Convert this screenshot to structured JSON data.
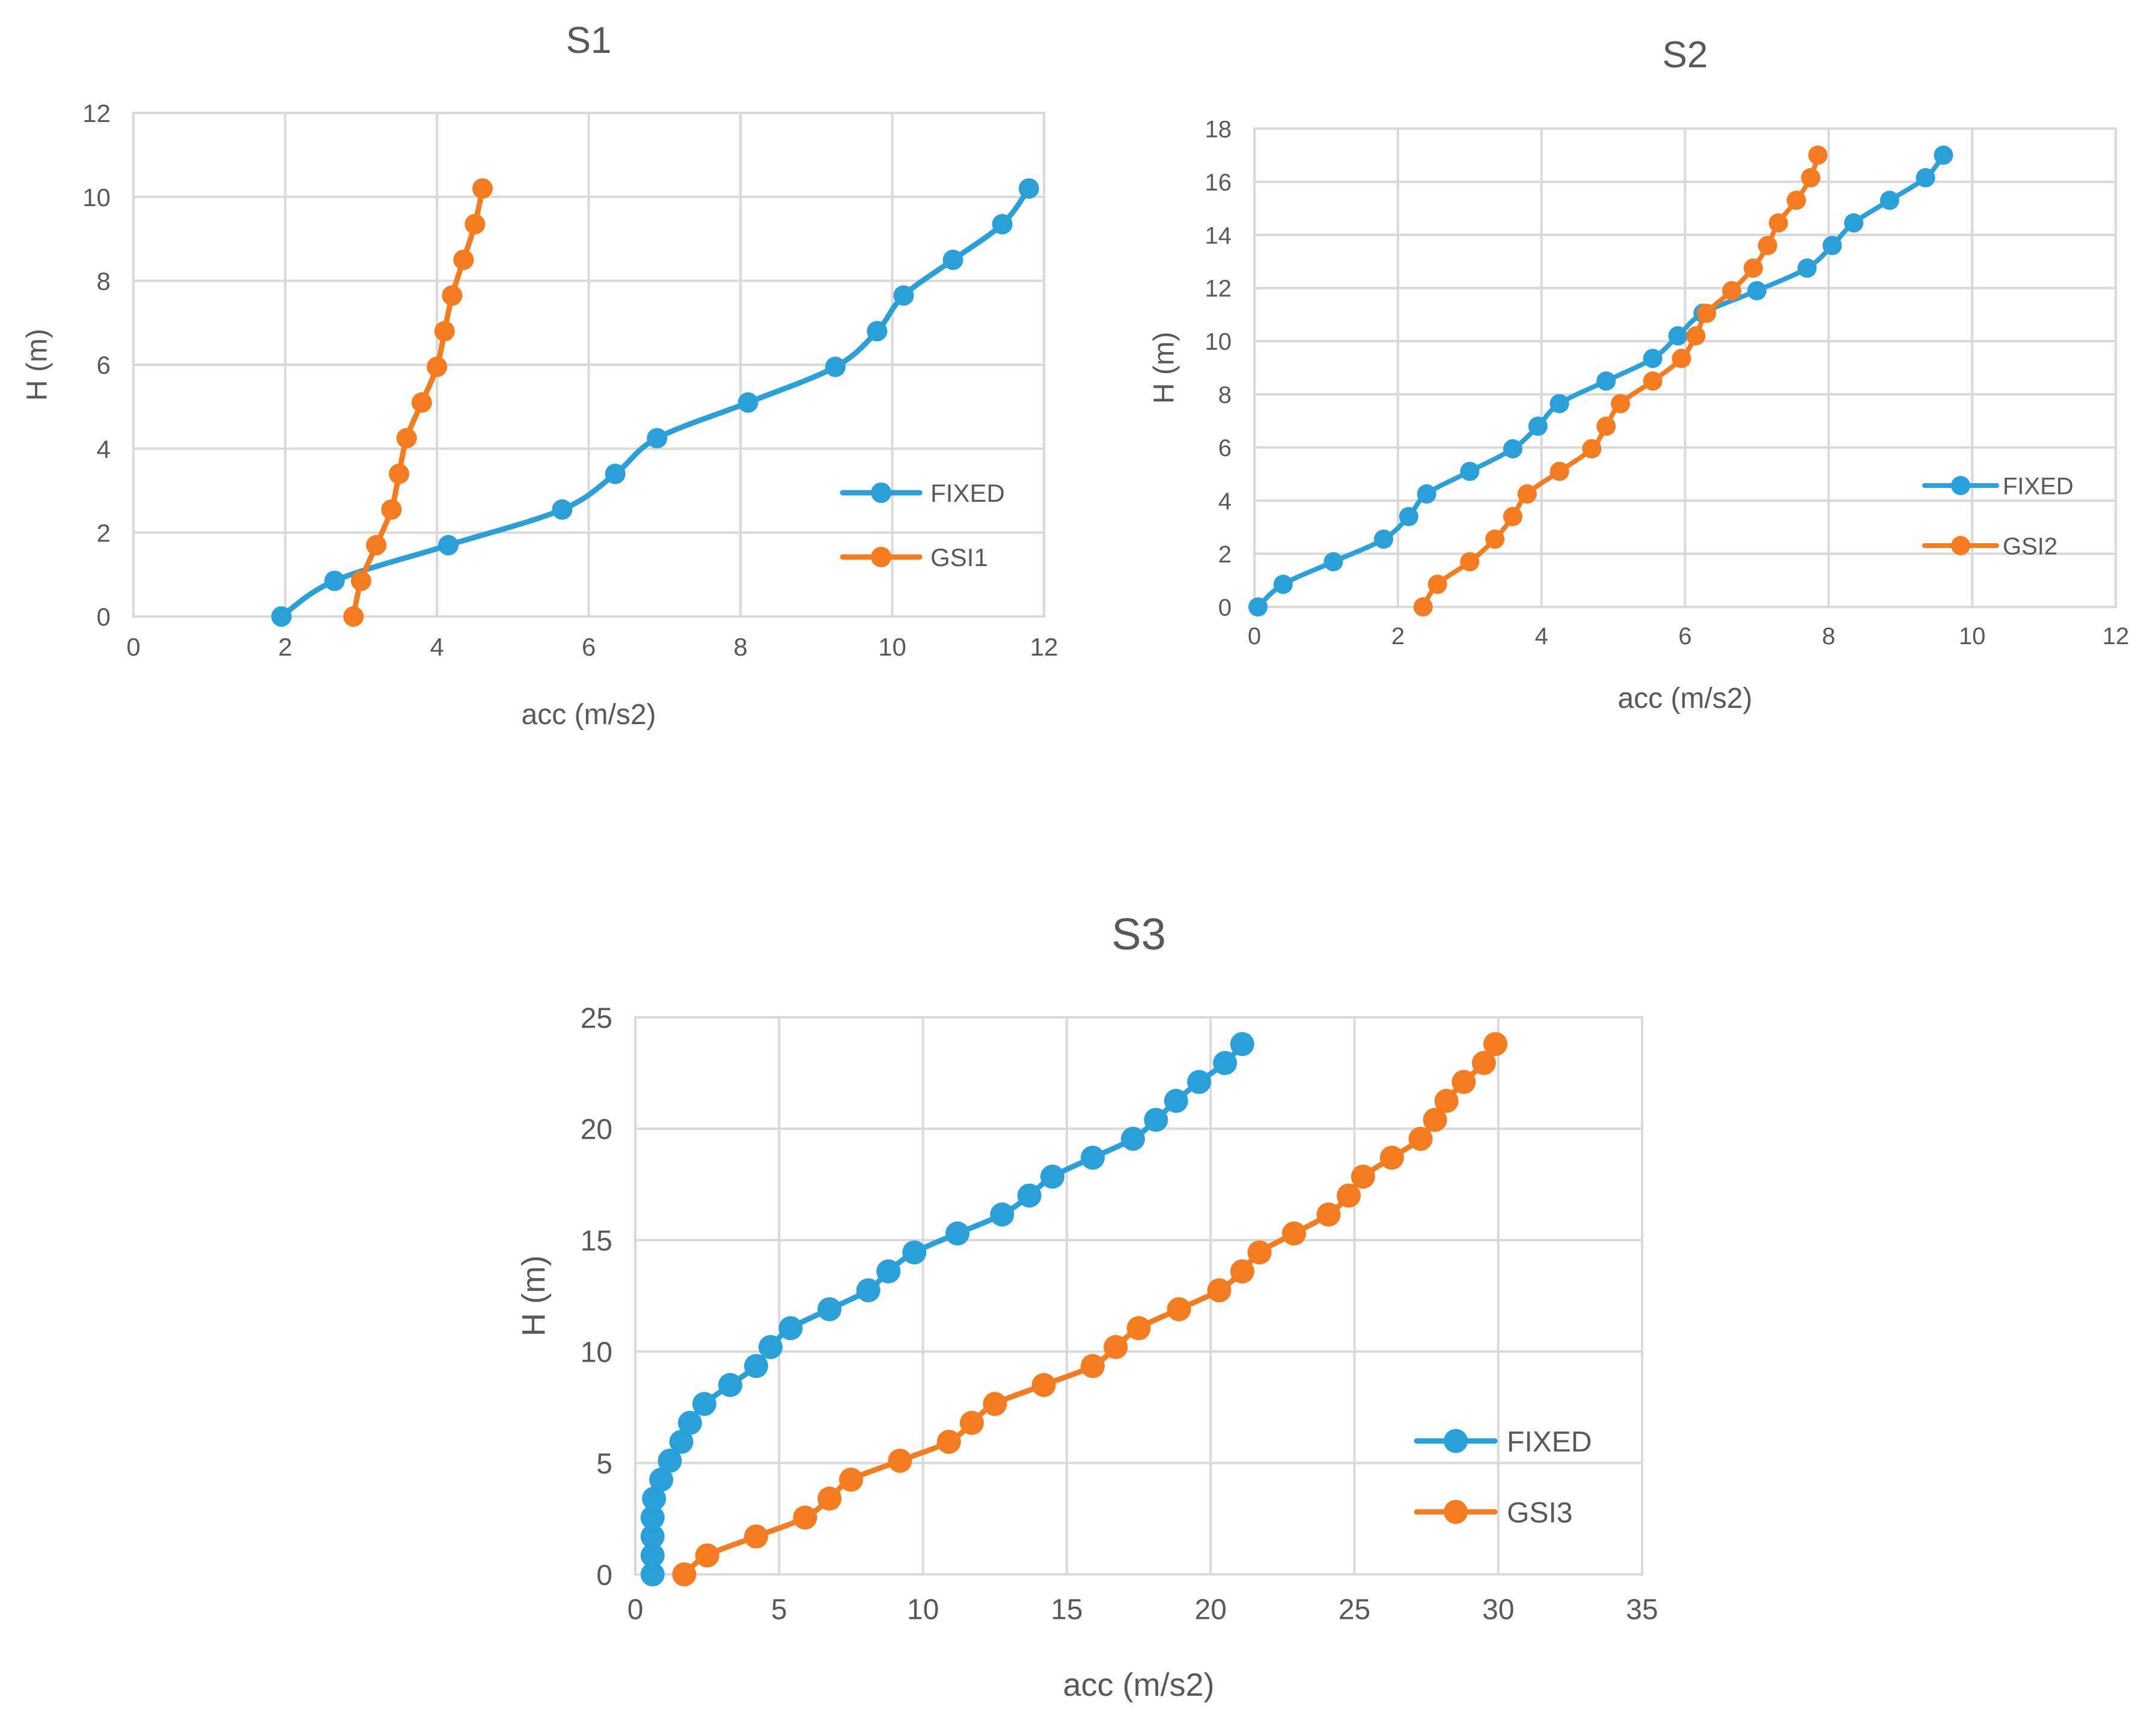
{
  "chart_data": [
    {
      "type": "line",
      "title": "S1",
      "xlabel": "acc (m/s2)",
      "ylabel": "H (m)",
      "xlim": [
        0,
        12
      ],
      "ylim": [
        0,
        12
      ],
      "xticks": [
        0,
        2,
        4,
        6,
        8,
        10,
        12
      ],
      "yticks": [
        0,
        2,
        4,
        6,
        8,
        10,
        12
      ],
      "grid": true,
      "legend_position": "right",
      "series": [
        {
          "name": "FIXED",
          "color": "#2a9fd8",
          "points": [
            [
              1.95,
              0
            ],
            [
              2.65,
              0.85
            ],
            [
              4.15,
              1.7
            ],
            [
              5.65,
              2.55
            ],
            [
              6.35,
              3.4
            ],
            [
              6.9,
              4.25
            ],
            [
              8.1,
              5.1
            ],
            [
              9.25,
              5.95
            ],
            [
              9.8,
              6.8
            ],
            [
              10.15,
              7.65
            ],
            [
              10.8,
              8.5
            ],
            [
              11.45,
              9.35
            ],
            [
              11.8,
              10.2
            ]
          ]
        },
        {
          "name": "GSI1",
          "color": "#f47b20",
          "points": [
            [
              2.9,
              0
            ],
            [
              3.0,
              0.85
            ],
            [
              3.2,
              1.7
            ],
            [
              3.4,
              2.55
            ],
            [
              3.5,
              3.4
            ],
            [
              3.6,
              4.25
            ],
            [
              3.8,
              5.1
            ],
            [
              4.0,
              5.95
            ],
            [
              4.1,
              6.8
            ],
            [
              4.2,
              7.65
            ],
            [
              4.35,
              8.5
            ],
            [
              4.5,
              9.35
            ],
            [
              4.6,
              10.2
            ]
          ]
        }
      ]
    },
    {
      "type": "line",
      "title": "S2",
      "xlabel": "acc (m/s2)",
      "ylabel": "H (m)",
      "xlim": [
        0,
        12
      ],
      "ylim": [
        0,
        18
      ],
      "xticks": [
        0,
        2,
        4,
        6,
        8,
        10,
        12
      ],
      "yticks": [
        0,
        2,
        4,
        6,
        8,
        10,
        12,
        14,
        16,
        18
      ],
      "grid": true,
      "legend_position": "right",
      "series": [
        {
          "name": "FIXED",
          "color": "#2a9fd8",
          "points": [
            [
              0.05,
              0
            ],
            [
              0.4,
              0.85
            ],
            [
              1.1,
              1.7
            ],
            [
              1.8,
              2.55
            ],
            [
              2.15,
              3.4
            ],
            [
              2.4,
              4.25
            ],
            [
              3.0,
              5.1
            ],
            [
              3.6,
              5.95
            ],
            [
              3.95,
              6.8
            ],
            [
              4.25,
              7.65
            ],
            [
              4.9,
              8.5
            ],
            [
              5.55,
              9.35
            ],
            [
              5.9,
              10.2
            ],
            [
              6.25,
              11.05
            ],
            [
              7.0,
              11.9
            ],
            [
              7.7,
              12.75
            ],
            [
              8.05,
              13.6
            ],
            [
              8.35,
              14.45
            ],
            [
              8.85,
              15.3
            ],
            [
              9.35,
              16.15
            ],
            [
              9.6,
              17.0
            ]
          ]
        },
        {
          "name": "GSI2",
          "color": "#f47b20",
          "points": [
            [
              2.35,
              0
            ],
            [
              2.55,
              0.85
            ],
            [
              3.0,
              1.7
            ],
            [
              3.35,
              2.55
            ],
            [
              3.6,
              3.4
            ],
            [
              3.8,
              4.25
            ],
            [
              4.25,
              5.1
            ],
            [
              4.7,
              5.95
            ],
            [
              4.9,
              6.8
            ],
            [
              5.1,
              7.65
            ],
            [
              5.55,
              8.5
            ],
            [
              5.95,
              9.35
            ],
            [
              6.15,
              10.2
            ],
            [
              6.3,
              11.05
            ],
            [
              6.65,
              11.9
            ],
            [
              6.95,
              12.75
            ],
            [
              7.15,
              13.6
            ],
            [
              7.3,
              14.45
            ],
            [
              7.55,
              15.3
            ],
            [
              7.75,
              16.15
            ],
            [
              7.85,
              17.0
            ]
          ]
        }
      ]
    },
    {
      "type": "line",
      "title": "S3",
      "xlabel": "acc (m/s2)",
      "ylabel": "H (m)",
      "xlim": [
        0,
        35
      ],
      "ylim": [
        0,
        25
      ],
      "xticks": [
        0,
        5,
        10,
        15,
        20,
        25,
        30,
        35
      ],
      "yticks": [
        0,
        5,
        10,
        15,
        20,
        25
      ],
      "grid": true,
      "legend_position": "right",
      "series": [
        {
          "name": "FIXED",
          "color": "#2a9fd8",
          "points": [
            [
              0.6,
              0
            ],
            [
              0.6,
              0.85
            ],
            [
              0.6,
              1.7
            ],
            [
              0.6,
              2.55
            ],
            [
              0.65,
              3.4
            ],
            [
              0.9,
              4.25
            ],
            [
              1.2,
              5.1
            ],
            [
              1.6,
              5.95
            ],
            [
              1.9,
              6.8
            ],
            [
              2.4,
              7.65
            ],
            [
              3.3,
              8.5
            ],
            [
              4.2,
              9.35
            ],
            [
              4.7,
              10.2
            ],
            [
              5.4,
              11.05
            ],
            [
              6.75,
              11.9
            ],
            [
              8.1,
              12.75
            ],
            [
              8.8,
              13.6
            ],
            [
              9.7,
              14.45
            ],
            [
              11.2,
              15.3
            ],
            [
              12.75,
              16.15
            ],
            [
              13.7,
              17.0
            ],
            [
              14.5,
              17.85
            ],
            [
              15.9,
              18.7
            ],
            [
              17.3,
              19.55
            ],
            [
              18.1,
              20.4
            ],
            [
              18.8,
              21.25
            ],
            [
              19.6,
              22.1
            ],
            [
              20.5,
              22.95
            ],
            [
              21.1,
              23.8
            ]
          ]
        },
        {
          "name": "GSI3",
          "color": "#f47b20",
          "points": [
            [
              1.7,
              0
            ],
            [
              2.5,
              0.85
            ],
            [
              4.2,
              1.7
            ],
            [
              5.9,
              2.55
            ],
            [
              6.75,
              3.4
            ],
            [
              7.5,
              4.25
            ],
            [
              9.2,
              5.1
            ],
            [
              10.9,
              5.95
            ],
            [
              11.7,
              6.8
            ],
            [
              12.5,
              7.65
            ],
            [
              14.2,
              8.5
            ],
            [
              15.9,
              9.35
            ],
            [
              16.7,
              10.2
            ],
            [
              17.5,
              11.05
            ],
            [
              18.9,
              11.9
            ],
            [
              20.3,
              12.75
            ],
            [
              21.1,
              13.6
            ],
            [
              21.7,
              14.45
            ],
            [
              22.9,
              15.3
            ],
            [
              24.1,
              16.15
            ],
            [
              24.8,
              17.0
            ],
            [
              25.3,
              17.85
            ],
            [
              26.3,
              18.7
            ],
            [
              27.3,
              19.55
            ],
            [
              27.8,
              20.4
            ],
            [
              28.2,
              21.25
            ],
            [
              28.8,
              22.1
            ],
            [
              29.5,
              22.95
            ],
            [
              29.9,
              23.8
            ]
          ]
        }
      ]
    }
  ]
}
